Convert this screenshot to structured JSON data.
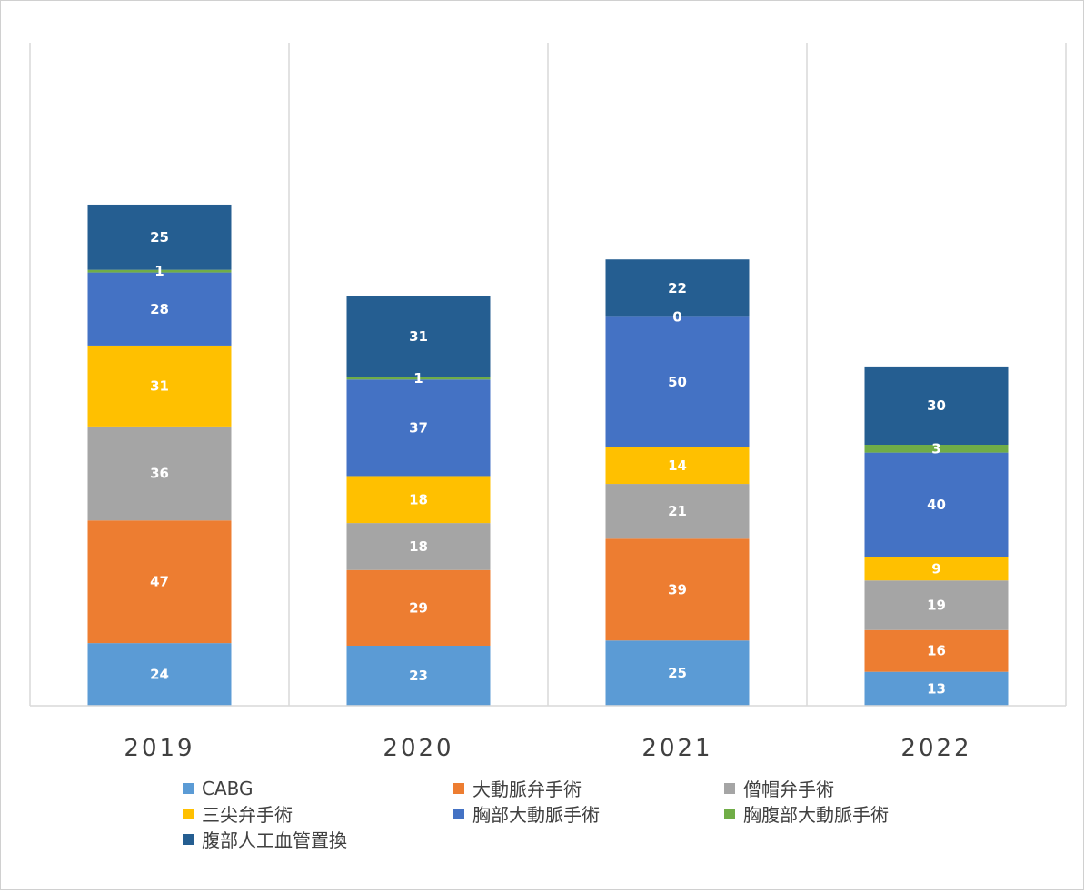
{
  "chart_data": {
    "type": "bar",
    "stacked": true,
    "categories": [
      "2019",
      "2020",
      "2021",
      "2022"
    ],
    "series": [
      {
        "name": "CABG",
        "color": "#5B9BD5",
        "values": [
          24,
          23,
          25,
          13
        ]
      },
      {
        "name": "大動脈弁手術",
        "color": "#ED7D31",
        "values": [
          47,
          29,
          39,
          16
        ]
      },
      {
        "name": "僧帽弁手術",
        "color": "#A5A5A5",
        "values": [
          36,
          18,
          21,
          19
        ]
      },
      {
        "name": "三尖弁手術",
        "color": "#FFC000",
        "values": [
          31,
          18,
          14,
          9
        ]
      },
      {
        "name": "胸部大動脈手術",
        "color": "#4472C4",
        "values": [
          28,
          37,
          50,
          40
        ]
      },
      {
        "name": "胸腹部大動脈手術",
        "color": "#70AD47",
        "values": [
          1,
          1,
          0,
          3
        ]
      },
      {
        "name": "腹部人工血管置換",
        "color": "#255E91",
        "values": [
          25,
          31,
          22,
          30
        ]
      }
    ],
    "ylim": [
      0,
      250
    ],
    "grid": false,
    "legend_position": "bottom",
    "data_labels": true
  }
}
